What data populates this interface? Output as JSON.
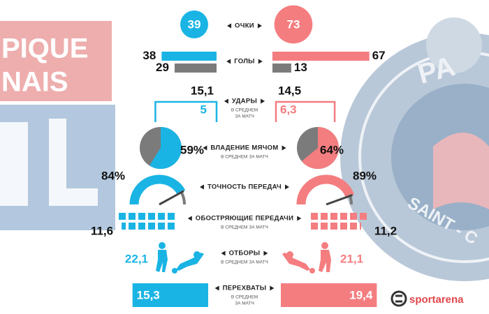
{
  "logos": {
    "left_lines": [
      "PIQUE",
      "NAIS"
    ],
    "right_top": "PA",
    "right_arc": "SAINT - C"
  },
  "colors": {
    "left": "#1ab4e4",
    "right": "#f47d80",
    "secondary": "#7b7b7b"
  },
  "stats": {
    "points": {
      "label": "ОЧКИ",
      "left": 39,
      "right": 73
    },
    "goals": {
      "label": "ГОЛЫ",
      "left": {
        "scored": 38,
        "conceded": 29
      },
      "right": {
        "scored": 67,
        "conceded": 13
      }
    },
    "shots": {
      "label": "УДАРЫ",
      "sub": [
        "В СРЕДНЕМ",
        "ЗА МАТЧ"
      ],
      "left": {
        "total": {
          "value": 15.1,
          "label": "15,1"
        },
        "on_target": 5
      },
      "right": {
        "total": {
          "value": 14.5,
          "label": "14,5"
        },
        "on_target": {
          "value": 6.3,
          "label": "6,3"
        }
      }
    },
    "possession": {
      "label": "ВЛАДЕНИЕ МЯЧОМ",
      "sub": [
        "В СРЕДНЕМ ЗА МАТЧ"
      ],
      "left": {
        "value": 59,
        "label": "59%"
      },
      "right": {
        "value": 64,
        "label": "64%"
      }
    },
    "pass_accuracy": {
      "label": "ТОЧНОСТЬ ПЕРЕДАЧ",
      "left": {
        "value": 84,
        "label": "84%"
      },
      "right": {
        "value": 89,
        "label": "89%"
      }
    },
    "key_passes": {
      "label": "ОБОСТРЯЮЩИЕ ПЕРЕДАЧИ",
      "sub": [
        "В СРЕДНЕМ ЗА МАТЧ"
      ],
      "left": {
        "value": 11.6,
        "label": "11,6"
      },
      "right": {
        "value": 11.2,
        "label": "11,2"
      }
    },
    "tackles": {
      "label": "ОТБОРЫ",
      "sub": [
        "В СРЕДНЕМ ЗА МАТЧ"
      ],
      "left": {
        "value": 22.1,
        "label": "22,1"
      },
      "right": {
        "value": 21.1,
        "label": "21,1"
      }
    },
    "interceptions": {
      "label": "ПЕРЕХВАТЫ",
      "sub": [
        "В СРЕДНЕМ",
        "ЗА МАТЧ"
      ],
      "left": {
        "value": 15.3,
        "label": "15,3"
      },
      "right": {
        "value": 19.4,
        "label": "19,4"
      }
    }
  },
  "brand": "sportarena"
}
